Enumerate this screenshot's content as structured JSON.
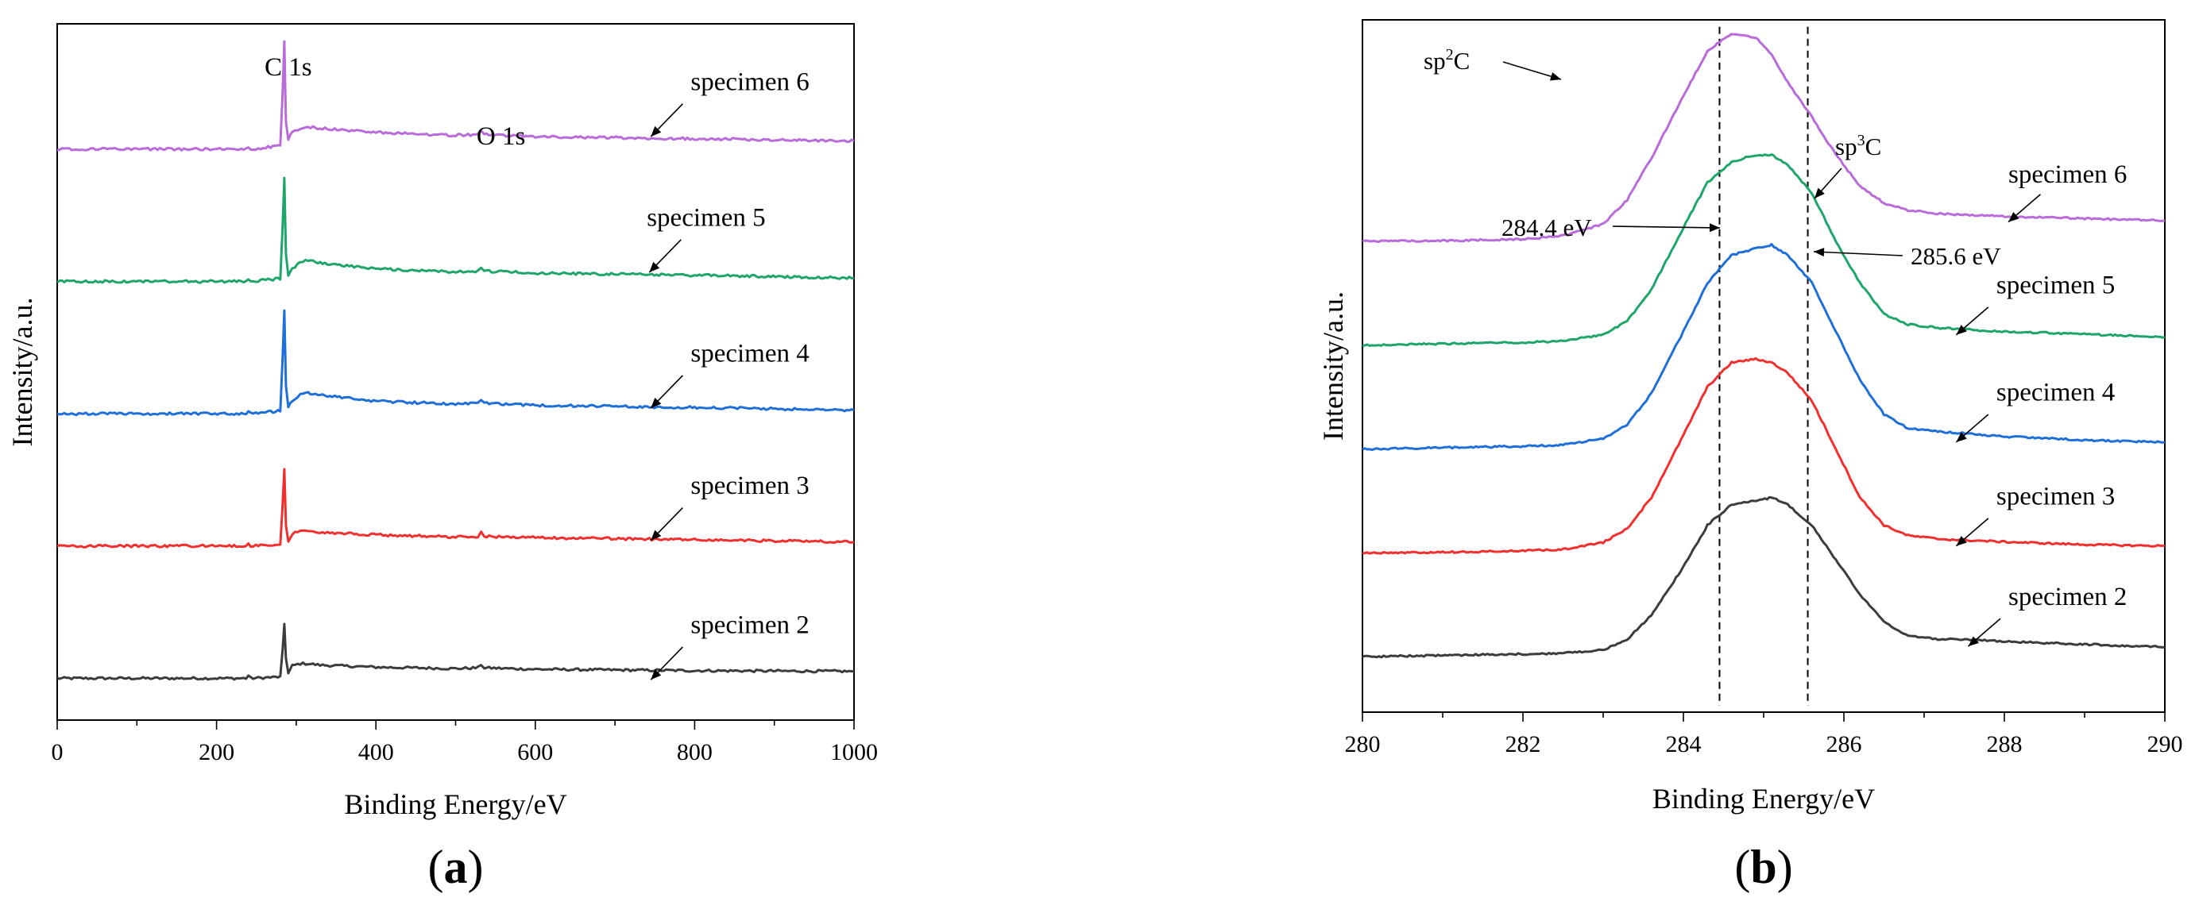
{
  "colors": {
    "specimen 2": "#3c3c3c",
    "specimen 3": "#f0302e",
    "specimen 4": "#1f6fd8",
    "specimen 5": "#1fa56a",
    "specimen 6": "#b86bd9"
  },
  "chart_data": [
    {
      "panel": "(a)",
      "panel_open": "(",
      "panel_letter": "a",
      "panel_close": ")",
      "type": "line",
      "title": "",
      "xlabel": "Binding Energy/eV",
      "ylabel": "Intensity/a.u.",
      "xlim": [
        0,
        1000
      ],
      "ylim": [
        0,
        100
      ],
      "xticks": [
        "0",
        "200",
        "400",
        "600",
        "800",
        "1000"
      ],
      "grid": false,
      "peak_labels": [
        {
          "text": "C 1s",
          "x": 285
        },
        {
          "text": "O 1s",
          "x": 532
        }
      ],
      "series": [
        {
          "name": "specimen 2",
          "label": "specimen 2",
          "x": [
            0,
            237,
            240,
            243,
            280,
            283,
            285,
            287,
            290,
            295,
            305,
            315,
            330,
            400,
            500,
            528,
            532,
            536,
            600,
            800,
            1000
          ],
          "y": [
            6.0,
            6.0,
            6.4,
            6.0,
            6.2,
            10.0,
            13.8,
            9.0,
            6.7,
            7.8,
            8.1,
            8.1,
            7.9,
            7.6,
            7.4,
            7.5,
            8.0,
            7.5,
            7.3,
            7.1,
            7.0
          ]
        },
        {
          "name": "specimen 3",
          "label": "specimen 3",
          "x": [
            0,
            237,
            240,
            243,
            280,
            283,
            285,
            287,
            290,
            295,
            305,
            315,
            330,
            400,
            500,
            528,
            532,
            536,
            600,
            800,
            1000
          ],
          "y": [
            25.0,
            25.0,
            25.4,
            25.0,
            25.2,
            31.0,
            36.0,
            28.0,
            25.8,
            26.8,
            27.2,
            27.2,
            27.0,
            26.6,
            26.3,
            26.4,
            26.9,
            26.4,
            26.2,
            25.9,
            25.6
          ]
        },
        {
          "name": "specimen 4",
          "label": "specimen 4",
          "x": [
            0,
            237,
            240,
            243,
            280,
            283,
            285,
            287,
            290,
            295,
            305,
            315,
            330,
            400,
            500,
            528,
            532,
            536,
            600,
            800,
            1000
          ],
          "y": [
            44.0,
            44.0,
            44.4,
            44.0,
            44.4,
            52.0,
            59.0,
            48.0,
            45.0,
            45.8,
            46.8,
            47.0,
            46.7,
            45.8,
            45.4,
            45.5,
            46.1,
            45.5,
            45.2,
            44.9,
            44.5
          ]
        },
        {
          "name": "specimen 5",
          "label": "specimen 5",
          "x": [
            0,
            237,
            240,
            243,
            280,
            283,
            285,
            287,
            290,
            295,
            305,
            315,
            330,
            400,
            500,
            528,
            532,
            536,
            600,
            800,
            1000
          ],
          "y": [
            63.0,
            63.0,
            63.4,
            63.0,
            63.4,
            71.0,
            78.0,
            67.0,
            64.0,
            64.8,
            65.8,
            66.0,
            65.7,
            64.8,
            64.4,
            64.5,
            65.1,
            64.5,
            64.2,
            63.9,
            63.5
          ]
        },
        {
          "name": "specimen 6",
          "label": "specimen 6",
          "x": [
            0,
            237,
            240,
            243,
            280,
            283,
            285,
            287,
            290,
            295,
            305,
            315,
            330,
            400,
            500,
            528,
            532,
            536,
            600,
            800,
            1000
          ],
          "y": [
            82.0,
            82.0,
            82.4,
            82.0,
            82.5,
            90.0,
            97.5,
            86.0,
            83.5,
            84.3,
            85.0,
            85.2,
            85.0,
            84.4,
            84.0,
            84.1,
            84.6,
            84.1,
            83.8,
            83.5,
            83.2
          ]
        }
      ]
    },
    {
      "panel": "(b)",
      "panel_open": "(",
      "panel_letter": "b",
      "panel_close": ")",
      "type": "line",
      "title": "",
      "xlabel": "Binding Energy/eV",
      "ylabel": "Intensity/a.u.",
      "xlim": [
        280,
        290
      ],
      "ylim": [
        0,
        100
      ],
      "xticks": [
        "280",
        "282",
        "284",
        "286",
        "288",
        "290"
      ],
      "grid": false,
      "reference_lines": [
        284.45,
        285.55
      ],
      "annotations": [
        {
          "text": "sp²C",
          "main": "sp",
          "sup": "2",
          "tail": "C"
        },
        {
          "text": "sp³C",
          "main": "sp",
          "sup": "3",
          "tail": "C"
        },
        {
          "text": "284.4 eV"
        },
        {
          "text": "285.6 eV"
        }
      ],
      "series": [
        {
          "name": "specimen 2",
          "label": "specimen 2",
          "x": [
            280,
            281,
            282,
            282.5,
            283,
            283.3,
            283.6,
            284,
            284.3,
            284.6,
            284.9,
            285.1,
            285.3,
            285.6,
            285.9,
            286.2,
            286.5,
            286.8,
            287.2,
            287.6,
            288,
            289,
            290
          ],
          "y": [
            8.0,
            8.2,
            8.4,
            8.5,
            9.0,
            10.5,
            14.0,
            21.0,
            27.0,
            30.0,
            30.5,
            31.0,
            30.0,
            27.0,
            22.0,
            17.0,
            13.0,
            11.0,
            10.5,
            10.5,
            10.2,
            9.8,
            9.4
          ]
        },
        {
          "name": "specimen 3",
          "label": "specimen 3",
          "x": [
            280,
            281,
            282,
            282.5,
            283,
            283.3,
            283.6,
            284,
            284.3,
            284.6,
            284.9,
            285.1,
            285.3,
            285.6,
            285.9,
            286.2,
            286.5,
            286.8,
            287.2,
            287.6,
            288,
            289,
            290
          ],
          "y": [
            23.0,
            23.1,
            23.3,
            23.5,
            24.5,
            26.5,
            31.0,
            40.0,
            47.0,
            50.5,
            51.0,
            50.5,
            49.0,
            45.0,
            38.0,
            31.0,
            27.0,
            25.5,
            25.0,
            24.8,
            24.6,
            24.2,
            24.0
          ]
        },
        {
          "name": "specimen 4",
          "label": "specimen 4",
          "x": [
            280,
            281,
            282,
            282.5,
            283,
            283.3,
            283.6,
            284,
            284.3,
            284.6,
            284.9,
            285.1,
            285.3,
            285.6,
            285.9,
            286.2,
            286.5,
            286.8,
            287.2,
            287.6,
            288,
            289,
            290
          ],
          "y": [
            38.0,
            38.2,
            38.4,
            38.6,
            39.5,
            41.5,
            46.0,
            55.0,
            62.0,
            66.0,
            67.0,
            67.5,
            66.0,
            62.0,
            55.0,
            48.0,
            43.0,
            41.0,
            40.5,
            40.2,
            39.8,
            39.3,
            39.0
          ]
        },
        {
          "name": "specimen 5",
          "label": "specimen 5",
          "x": [
            280,
            281,
            282,
            282.5,
            283,
            283.3,
            283.6,
            284,
            284.3,
            284.6,
            284.9,
            285.1,
            285.3,
            285.6,
            285.9,
            286.2,
            286.5,
            286.8,
            287.2,
            287.6,
            288,
            289,
            290
          ],
          "y": [
            53.0,
            53.2,
            53.4,
            53.6,
            54.5,
            56.5,
            61.0,
            70.0,
            76.5,
            79.5,
            80.5,
            80.5,
            79.0,
            75.0,
            68.0,
            62.0,
            57.5,
            56.0,
            55.5,
            55.2,
            55.0,
            54.6,
            54.2
          ]
        },
        {
          "name": "specimen 6",
          "label": "specimen 6",
          "x": [
            280,
            281,
            282,
            282.5,
            283,
            283.3,
            283.6,
            284,
            284.3,
            284.6,
            284.9,
            285.1,
            285.3,
            285.6,
            285.9,
            286.2,
            286.5,
            286.8,
            287.2,
            287.6,
            288,
            289,
            290
          ],
          "y": [
            68.0,
            68.1,
            68.3,
            68.8,
            70.5,
            74.0,
            80.0,
            89.0,
            95.5,
            98.0,
            97.5,
            95.0,
            91.0,
            86.0,
            80.5,
            76.0,
            73.5,
            72.5,
            72.0,
            71.8,
            71.6,
            71.3,
            71.0
          ]
        }
      ]
    }
  ]
}
